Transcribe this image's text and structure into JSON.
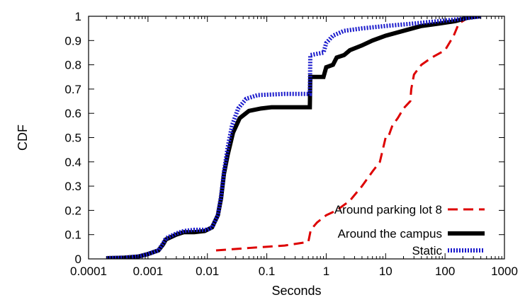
{
  "chart_data": {
    "type": "line",
    "xlabel": "Seconds",
    "ylabel": "CDF",
    "xscale": "log",
    "xlim": [
      0.0001,
      1000
    ],
    "ylim": [
      0,
      1
    ],
    "x_ticks": [
      0.0001,
      0.001,
      0.01,
      0.1,
      1,
      10,
      100,
      1000
    ],
    "x_tick_labels": [
      "0.0001",
      "0.001",
      "0.01",
      "0.1",
      "1",
      "10",
      "100",
      "1000"
    ],
    "y_ticks": [
      0,
      0.1,
      0.2,
      0.3,
      0.4,
      0.5,
      0.6,
      0.7,
      0.8,
      0.9,
      1
    ],
    "y_tick_labels": [
      "0",
      "0.1",
      "0.2",
      "0.3",
      "0.4",
      "0.5",
      "0.6",
      "0.7",
      "0.8",
      "0.9",
      "1"
    ],
    "grid": false,
    "legend_position": "bottom-right",
    "series": [
      {
        "name": "Around parking lot 8",
        "color": "#dd0000",
        "style": "dashed",
        "points": [
          [
            0.014,
            0.035
          ],
          [
            0.05,
            0.045
          ],
          [
            0.2,
            0.055
          ],
          [
            0.5,
            0.07
          ],
          [
            0.55,
            0.12
          ],
          [
            0.7,
            0.15
          ],
          [
            1.0,
            0.18
          ],
          [
            1.5,
            0.2
          ],
          [
            2.5,
            0.24
          ],
          [
            4.0,
            0.3
          ],
          [
            6.0,
            0.36
          ],
          [
            8.0,
            0.4
          ],
          [
            10.0,
            0.5
          ],
          [
            11.0,
            0.5
          ],
          [
            13.0,
            0.55
          ],
          [
            16.0,
            0.58
          ],
          [
            20.0,
            0.62
          ],
          [
            26.0,
            0.65
          ],
          [
            27.0,
            0.7
          ],
          [
            30.0,
            0.76
          ],
          [
            40.0,
            0.8
          ],
          [
            60.0,
            0.83
          ],
          [
            100.0,
            0.86
          ],
          [
            140.0,
            0.92
          ],
          [
            170.0,
            0.97
          ],
          [
            230.0,
            0.99
          ],
          [
            300.0,
            1.0
          ]
        ]
      },
      {
        "name": "Around the campus",
        "color": "#000000",
        "style": "solid",
        "points": [
          [
            0.0002,
            0.003
          ],
          [
            0.0004,
            0.005
          ],
          [
            0.0007,
            0.01
          ],
          [
            0.001,
            0.02
          ],
          [
            0.0015,
            0.035
          ],
          [
            0.0018,
            0.06
          ],
          [
            0.002,
            0.08
          ],
          [
            0.003,
            0.1
          ],
          [
            0.004,
            0.11
          ],
          [
            0.006,
            0.11
          ],
          [
            0.009,
            0.115
          ],
          [
            0.012,
            0.13
          ],
          [
            0.015,
            0.18
          ],
          [
            0.017,
            0.25
          ],
          [
            0.019,
            0.35
          ],
          [
            0.022,
            0.43
          ],
          [
            0.027,
            0.52
          ],
          [
            0.035,
            0.58
          ],
          [
            0.05,
            0.61
          ],
          [
            0.08,
            0.62
          ],
          [
            0.12,
            0.625
          ],
          [
            0.2,
            0.625
          ],
          [
            0.53,
            0.625
          ],
          [
            0.54,
            0.75
          ],
          [
            0.9,
            0.75
          ],
          [
            1.0,
            0.79
          ],
          [
            1.3,
            0.8
          ],
          [
            1.5,
            0.83
          ],
          [
            2.0,
            0.84
          ],
          [
            2.5,
            0.86
          ],
          [
            4.0,
            0.88
          ],
          [
            6.0,
            0.9
          ],
          [
            10.0,
            0.92
          ],
          [
            20.0,
            0.94
          ],
          [
            40.0,
            0.96
          ],
          [
            80.0,
            0.97
          ],
          [
            150.0,
            0.98
          ],
          [
            250.0,
            0.995
          ],
          [
            400.0,
            1.0
          ]
        ]
      },
      {
        "name": "Static",
        "color": "#1a1acc",
        "style": "dotted",
        "points": [
          [
            0.0002,
            0.003
          ],
          [
            0.0004,
            0.005
          ],
          [
            0.0007,
            0.01
          ],
          [
            0.001,
            0.02
          ],
          [
            0.0015,
            0.035
          ],
          [
            0.0018,
            0.065
          ],
          [
            0.002,
            0.085
          ],
          [
            0.003,
            0.105
          ],
          [
            0.004,
            0.115
          ],
          [
            0.006,
            0.12
          ],
          [
            0.01,
            0.12
          ],
          [
            0.012,
            0.13
          ],
          [
            0.015,
            0.18
          ],
          [
            0.017,
            0.26
          ],
          [
            0.019,
            0.36
          ],
          [
            0.022,
            0.46
          ],
          [
            0.026,
            0.55
          ],
          [
            0.033,
            0.62
          ],
          [
            0.045,
            0.66
          ],
          [
            0.07,
            0.675
          ],
          [
            0.2,
            0.68
          ],
          [
            0.53,
            0.68
          ],
          [
            0.54,
            0.84
          ],
          [
            0.9,
            0.85
          ],
          [
            1.0,
            0.89
          ],
          [
            1.3,
            0.92
          ],
          [
            2.0,
            0.94
          ],
          [
            4.0,
            0.95
          ],
          [
            10.0,
            0.96
          ],
          [
            30.0,
            0.97
          ],
          [
            80.0,
            0.98
          ],
          [
            200.0,
            0.99
          ],
          [
            400.0,
            1.0
          ]
        ]
      }
    ]
  }
}
